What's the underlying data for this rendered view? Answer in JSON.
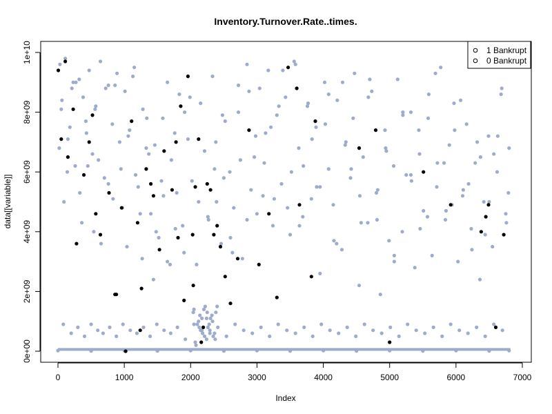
{
  "chart_data": {
    "type": "scatter",
    "title": "Inventory.Turnover.Rate..times.",
    "xlabel": "Index",
    "ylabel": "data[[variable]]",
    "xlim": [
      0,
      6820
    ],
    "ylim": [
      0,
      10000000000
    ],
    "x_ticks": [
      0,
      1000,
      2000,
      3000,
      4000,
      5000,
      6000,
      7000
    ],
    "x_tick_labels": [
      "0",
      "1000",
      "2000",
      "3000",
      "4000",
      "5000",
      "6000",
      "7000"
    ],
    "y_ticks": [
      0,
      2000000000,
      4000000000,
      6000000000,
      8000000000,
      10000000000
    ],
    "y_tick_labels": [
      "0e+00",
      "2e+09",
      "4e+09",
      "6e+09",
      "8e+09",
      "1e+10"
    ],
    "grid": false,
    "legend_position": "top-right",
    "legend": [
      {
        "marker": "o",
        "label": "1 Bankrupt",
        "color": "#000000"
      },
      {
        "marker": "o",
        "label": "0 Bankrupt",
        "color": "#000000"
      }
    ],
    "series": [
      {
        "name": "0 Bankrupt",
        "color": "#9daccb",
        "x": [
          30,
          60,
          110,
          150,
          210,
          260,
          320,
          380,
          430,
          470,
          520,
          570,
          640,
          700,
          760,
          820,
          890,
          950,
          1010,
          1080,
          1150,
          1210,
          1280,
          1340,
          1400,
          1460,
          1520,
          1590,
          1650,
          1710,
          1770,
          1830,
          1900,
          1960,
          2020,
          2090,
          2150,
          2210,
          2270,
          2330,
          2390,
          2460,
          2520,
          2590,
          2650,
          2720,
          2780,
          2850,
          2910,
          2980,
          3040,
          3110,
          3170,
          3240,
          3300,
          3370,
          3430,
          3500,
          3560,
          3630,
          3690,
          3760,
          3820,
          3890,
          3950,
          4020,
          4080,
          4150,
          4210,
          4280,
          4340,
          4410,
          4470,
          4540,
          4600,
          4670,
          4730,
          4800,
          4860,
          4930,
          4990,
          5060,
          5120,
          5190,
          5250,
          5320,
          5380,
          5450,
          5510,
          5580,
          5640,
          5710,
          5770,
          5840,
          5900,
          5970,
          6030,
          6100,
          6160,
          6230,
          6290,
          6360,
          6420,
          6490,
          6550,
          6620,
          6680,
          6750,
          6800,
          50,
          140,
          230,
          330,
          420,
          540,
          610,
          720,
          830,
          930,
          1040,
          1130,
          1240,
          1330,
          1440,
          1560,
          1650,
          1760,
          1880,
          1990,
          2120,
          2240,
          2360,
          2480,
          2600,
          2720,
          2850,
          2960,
          3090,
          3210,
          3330,
          3460,
          3580,
          3700,
          3830,
          3950,
          4080,
          4200,
          4330,
          4450,
          4570,
          4700,
          4820,
          4950,
          5070,
          5200,
          5320,
          5440,
          5570,
          5690,
          5820,
          5940,
          6070,
          6190,
          6320,
          6440,
          6570,
          6690,
          6790,
          20,
          90,
          180,
          270,
          360,
          450,
          560,
          650,
          760,
          860,
          970,
          1060,
          1170,
          1270,
          1370,
          1480,
          1580,
          1690,
          1790,
          1910,
          2040,
          2150,
          2260,
          2380,
          2500,
          2630,
          2750,
          2880,
          3000,
          3130,
          3260,
          3390,
          3520,
          3640,
          3770,
          3900,
          4030,
          4160,
          4290,
          4420,
          4550,
          4680,
          4810,
          4940,
          5070,
          5200,
          5330,
          5460,
          5590,
          5720,
          5850,
          5980,
          6110,
          6240,
          6370,
          6500,
          6630,
          6760,
          80,
          200,
          300,
          400,
          500,
          600,
          680,
          780,
          880,
          980,
          1090,
          1190,
          1290,
          1390,
          1490,
          1600,
          1700,
          1800,
          1920,
          2050,
          2170,
          2290,
          2410,
          2540,
          2670,
          2800,
          2930,
          3060,
          3190,
          3320,
          3450,
          3580,
          3710,
          3840,
          3970,
          4100,
          4230,
          4360,
          4490,
          4620,
          4750,
          4880,
          5010,
          5140,
          5270,
          5400,
          5530,
          5660,
          5790,
          5920,
          6050,
          6180,
          6310,
          6440,
          6570,
          6700,
          2050,
          2100,
          2140,
          2180,
          2220,
          2260,
          2300,
          2340,
          2380,
          2070,
          2120,
          2160,
          2200,
          2240,
          2280,
          2320,
          2360,
          2400,
          2080,
          2130,
          2170,
          2210,
          2250,
          2290,
          2330,
          2370,
          0,
          500,
          1000,
          1500,
          2000,
          2500,
          3000,
          3500,
          4000,
          4500,
          5000,
          5500,
          6000,
          6500,
          6800
        ],
        "y": [
          9600000000.0,
          8400000000.0,
          9800000000.0,
          7100000000.0,
          8800000000.0,
          6200000000.0,
          9100000000.0,
          8500000000.0,
          7300000000.0,
          9400000000.0,
          6600000000.0,
          8200000000.0,
          9700000000.0,
          5800000000.0,
          8900000000.0,
          7600000000.0,
          9300000000.0,
          6100000000.0,
          8700000000.0,
          7400000000.0,
          9500000000.0,
          5500000000.0,
          8100000000.0,
          7800000000.0,
          4600000000.0,
          6900000000.0,
          3800000000.0,
          5200000000.0,
          9000000000.0,
          6400000000.0,
          4100000000.0,
          8600000000.0,
          3300000000.0,
          7100000000.0,
          5700000000.0,
          2900000000.0,
          8300000000.0,
          6700000000.0,
          4400000000.0,
          9200000000.0,
          5000000000.0,
          3600000000.0,
          7700000000.0,
          6000000000.0,
          4800000000.0,
          8000000000.0,
          3100000000.0,
          9600000000.0,
          5400000000.0,
          7200000000.0,
          8800000000.0,
          6300000000.0,
          9400000000.0,
          4200000000.0,
          7900000000.0,
          5600000000.0,
          8500000000.0,
          3900000000.0,
          9700000000.0,
          6800000000.0,
          4500000000.0,
          8200000000.0,
          5100000000.0,
          7500000000.0,
          2600000000.0,
          9000000000.0,
          6100000000.0,
          4900000000.0,
          8400000000.0,
          3400000000.0,
          7000000000.0,
          5800000000.0,
          9300000000.0,
          2200000000.0,
          6500000000.0,
          4300000000.0,
          8700000000.0,
          5300000000.0,
          1900000000.0,
          7400000000.0,
          3700000000.0,
          6200000000.0,
          9100000000.0,
          4000000000.0,
          5900000000.0,
          8000000000.0,
          2800000000.0,
          6600000000.0,
          4700000000.0,
          7800000000.0,
          3200000000.0,
          5500000000.0,
          9500000000.0,
          4400000000.0,
          6900000000.0,
          8300000000.0,
          3000000000.0,
          5200000000.0,
          7600000000.0,
          4100000000.0,
          6300000000.0,
          2400000000.0,
          5000000000.0,
          7200000000.0,
          3500000000.0,
          6000000000.0,
          8600000000.0,
          4600000000.0,
          6800000000.0,
          8100000000.0,
          6000000000.0,
          9000000000.0,
          5300000000.0,
          7700000000.0,
          4000000000.0,
          6400000000.0,
          8800000000.0,
          5100000000.0,
          7000000000.0,
          3500000000.0,
          9200000000.0,
          4600000000.0,
          6800000000.0,
          2400000000.0,
          5700000000.0,
          3000000000.0,
          7300000000.0,
          4200000000.0,
          8500000000.0,
          5000000000.0,
          1100000000.0,
          6100000000.0,
          7900000000.0,
          3800000000.0,
          8900000000.0,
          4400000000.0,
          6500000000.0,
          5200000000.0,
          7500000000.0,
          8200000000.0,
          4800000000.0,
          9600000000.0,
          6200000000.0,
          7100000000.0,
          5500000000.0,
          8600000000.0,
          3600000000.0,
          6900000000.0,
          7800000000.0,
          4300000000.0,
          9100000000.0,
          5400000000.0,
          6700000000.0,
          3200000000.0,
          8000000000.0,
          5900000000.0,
          7400000000.0,
          4500000000.0,
          9300000000.0,
          6300000000.0,
          4900000000.0,
          8400000000.0,
          5600000000.0,
          7000000000.0,
          3900000000.0,
          6600000000.0,
          8800000000.0,
          5300000000.0,
          6800000000.0,
          5000000000.0,
          7500000000.0,
          9000000000.0,
          4300000000.0,
          6200000000.0,
          8100000000.0,
          3600000000.0,
          5600000000.0,
          8900000000.0,
          4800000000.0,
          7200000000.0,
          5900000000.0,
          3100000000.0,
          6600000000.0,
          4000000000.0,
          7800000000.0,
          2900000000.0,
          5300000000.0,
          8000000000.0,
          1300000000.0,
          700000000.0,
          4500000000.0,
          7000000000.0,
          5800000000.0,
          3300000000.0,
          6400000000.0,
          8700000000.0,
          4600000000.0,
          7300000000.0,
          5100000000.0,
          9400000000.0,
          6000000000.0,
          4200000000.0,
          8300000000.0,
          5500000000.0,
          7600000000.0,
          3700000000.0,
          9000000000.0,
          6100000000.0,
          5200000000.0,
          8500000000.0,
          4400000000.0,
          6800000000.0,
          3000000000.0,
          7900000000.0,
          5700000000.0,
          4100000000.0,
          8600000000.0,
          6300000000.0,
          4700000000.0,
          7400000000.0,
          5400000000.0,
          3400000000.0,
          6500000000.0,
          5000000000.0,
          7200000000.0,
          4300000000.0,
          900000000.0,
          600000000.0,
          800000000.0,
          500000000.0,
          900000000.0,
          700000000.0,
          600000000.0,
          800000000.0,
          500000000.0,
          900000000.0,
          700000000.0,
          600000000.0,
          800000000.0,
          500000000.0,
          900000000.0,
          700000000.0,
          600000000.0,
          800000000.0,
          400000000.0,
          900000000.0,
          700000000.0,
          600000000.0,
          800000000.0,
          500000000.0,
          900000000.0,
          700000000.0,
          600000000.0,
          800000000.0,
          500000000.0,
          900000000.0,
          700000000.0,
          600000000.0,
          800000000.0,
          500000000.0,
          900000000.0,
          700000000.0,
          600000000.0,
          800000000.0,
          500000000.0,
          900000000.0,
          700000000.0,
          600000000.0,
          800000000.0,
          500000000.0,
          900000000.0,
          700000000.0,
          600000000.0,
          800000000.0,
          500000000.0,
          900000000.0,
          700000000.0,
          600000000.0,
          800000000.0,
          500000000.0,
          900000000.0,
          700000000.0,
          1400000000.0,
          900000000.0,
          1200000000.0,
          600000000.0,
          1500000000.0,
          800000000.0,
          1100000000.0,
          500000000.0,
          1300000000.0,
          300000000.0,
          1000000000.0,
          700000000.0,
          1400000000.0,
          400000000.0,
          900000000.0,
          1200000000.0,
          600000000.0,
          1500000000.0,
          200000000.0,
          800000000.0,
          1100000000.0,
          500000000.0,
          1300000000.0,
          700000000.0,
          1000000000.0,
          400000000.0,
          20000000.0,
          10000000.0,
          20000000.0,
          10000000.0,
          20000000.0,
          10000000.0,
          20000000.0,
          10000000.0,
          20000000.0,
          10000000.0,
          20000000.0,
          10000000.0,
          20000000.0,
          10000000.0,
          20000000.0
        ]
      },
      {
        "name": "1 Bankrupt",
        "color": "#000000",
        "x": [
          5,
          110,
          150,
          230,
          280,
          390,
          470,
          520,
          570,
          640,
          770,
          880,
          960,
          1110,
          1200,
          1260,
          1330,
          1400,
          1440,
          1530,
          1600,
          1720,
          1780,
          1850,
          1900,
          1960,
          2030,
          2070,
          2120,
          2190,
          2250,
          2300,
          2350,
          2400,
          2450,
          2520,
          2600,
          2710,
          2880,
          3030,
          3180,
          3300,
          3470,
          3600,
          3640,
          3820,
          3880,
          4540,
          4790,
          5000,
          5510,
          5920,
          6380,
          6450,
          6490,
          6600,
          6720,
          50,
          860,
          1020,
          1240,
          1810,
          2040,
          2160
        ],
        "y": [
          9400000000.0,
          9700000000.0,
          6500000000.0,
          8100000000.0,
          3600000000.0,
          5900000000.0,
          7000000000.0,
          7900000000.0,
          4600000000.0,
          3900000000.0,
          5300000000.0,
          1900000000.0,
          4800000000.0,
          7700000000.0,
          4300000000.0,
          2100000000.0,
          6100000000.0,
          5600000000.0,
          5200000000.0,
          3400000000.0,
          6700000000.0,
          5400000000.0,
          7000000000.0,
          8200000000.0,
          1700000000.0,
          9200000000.0,
          3900000000.0,
          5500000000.0,
          7100000000.0,
          800000000.0,
          5600000000.0,
          5400000000.0,
          3900000000.0,
          4200000000.0,
          3500000000.0,
          2500000000.0,
          1600000000.0,
          3100000000.0,
          7400000000.0,
          2900000000.0,
          4600000000.0,
          1800000000.0,
          9500000000.0,
          8800000000.0,
          4900000000.0,
          2500000000.0,
          7700000000.0,
          6800000000.0,
          7400000000.0,
          300000000.0,
          6000000000.0,
          4900000000.0,
          4000000000.0,
          4500000000.0,
          4900000000.0,
          800000000.0,
          3900000000.0,
          7100000000.0,
          1900000000.0,
          0.0,
          700000000.0,
          3800000000.0,
          2200000000.0,
          300000000.0
        ]
      }
    ]
  }
}
